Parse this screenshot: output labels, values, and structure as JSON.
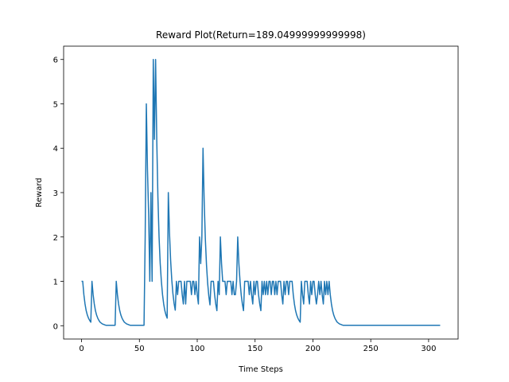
{
  "chart_data": {
    "type": "line",
    "title": "Reward Plot(Return=189.04999999999998)",
    "x_label": "Time Steps",
    "y_label": "Reward",
    "color": "#1f77b4",
    "xlim": [
      -15.5,
      325.5
    ],
    "ylim": [
      -0.3,
      6.3
    ],
    "xticks": [
      0,
      50,
      100,
      150,
      200,
      250,
      300
    ],
    "yticks": [
      0,
      1,
      2,
      3,
      4,
      5,
      6
    ],
    "x": [
      0,
      1,
      2,
      3,
      4,
      5,
      6,
      7,
      8,
      9,
      10,
      11,
      12,
      13,
      14,
      15,
      16,
      17,
      18,
      19,
      20,
      21,
      29,
      30,
      31,
      32,
      33,
      34,
      35,
      36,
      37,
      38,
      39,
      40,
      41,
      42,
      54,
      55,
      56,
      57,
      58,
      59,
      60,
      61,
      62,
      63,
      64,
      65,
      66,
      67,
      68,
      69,
      70,
      71,
      72,
      73,
      74,
      75,
      76,
      77,
      78,
      79,
      80,
      81,
      82,
      83,
      84,
      85,
      86,
      87,
      88,
      89,
      90,
      91,
      92,
      93,
      94,
      95,
      96,
      97,
      98,
      99,
      100,
      101,
      102,
      103,
      104,
      105,
      106,
      107,
      108,
      109,
      110,
      111,
      112,
      113,
      114,
      115,
      116,
      117,
      118,
      119,
      120,
      121,
      122,
      123,
      124,
      125,
      126,
      127,
      128,
      129,
      130,
      131,
      132,
      133,
      134,
      135,
      136,
      137,
      138,
      139,
      140,
      141,
      142,
      143,
      144,
      145,
      146,
      147,
      148,
      149,
      150,
      151,
      152,
      153,
      154,
      155,
      156,
      157,
      158,
      159,
      160,
      161,
      162,
      163,
      164,
      165,
      166,
      167,
      168,
      169,
      170,
      171,
      172,
      173,
      174,
      175,
      176,
      177,
      178,
      179,
      180,
      181,
      182,
      183,
      184,
      185,
      186,
      187,
      188,
      189,
      190,
      191,
      192,
      193,
      194,
      195,
      196,
      197,
      198,
      199,
      200,
      201,
      202,
      203,
      204,
      205,
      206,
      207,
      208,
      209,
      210,
      211,
      212,
      213,
      214,
      215,
      216,
      217,
      218,
      219,
      220,
      221,
      222,
      223,
      224,
      225,
      226,
      310
    ],
    "values": [
      1,
      1,
      0.7,
      0.49,
      0.34,
      0.24,
      0.17,
      0.12,
      0.08,
      1,
      0.7,
      0.49,
      0.34,
      0.24,
      0.17,
      0.12,
      0.08,
      0.06,
      0.04,
      0.03,
      0.02,
      0.01,
      0.01,
      1,
      0.7,
      0.49,
      0.34,
      0.24,
      0.17,
      0.12,
      0.08,
      0.06,
      0.04,
      0.03,
      0.02,
      0.01,
      0.01,
      2,
      5,
      3.5,
      2.5,
      1,
      3,
      1,
      6,
      4.2,
      6,
      4.2,
      2.9,
      2,
      1.4,
      1,
      0.7,
      0.49,
      0.34,
      0.24,
      0.17,
      3,
      2.1,
      1.47,
      1.03,
      0.72,
      0.5,
      0.35,
      1,
      0.7,
      1,
      1,
      1,
      0.7,
      0.49,
      1,
      0.49,
      1,
      1,
      1,
      1,
      0.7,
      1,
      1,
      0.7,
      1,
      0.7,
      0.49,
      2,
      1.4,
      2,
      4,
      2.8,
      1.96,
      1.37,
      0.96,
      0.67,
      0.47,
      1,
      1,
      1,
      0.7,
      0.49,
      0.34,
      1,
      0.7,
      2,
      1.4,
      1,
      1,
      1,
      0.7,
      1,
      1,
      1,
      1,
      0.7,
      1,
      0.7,
      0.7,
      1,
      2,
      1.4,
      1,
      0.7,
      0.49,
      0.34,
      1,
      1,
      1,
      1,
      0.7,
      1,
      0.7,
      0.49,
      1,
      0.7,
      1,
      1,
      0.7,
      0.49,
      0.34,
      1,
      0.7,
      1,
      0.7,
      1,
      0.7,
      1,
      1,
      0.7,
      1,
      1,
      0.7,
      1,
      0.7,
      1,
      1,
      1,
      0.7,
      0.49,
      1,
      0.7,
      1,
      1,
      0.7,
      1,
      1,
      1,
      0.7,
      0.49,
      0.34,
      0.24,
      0.17,
      0.12,
      0.08,
      1,
      0.7,
      0.49,
      1,
      1,
      1,
      0.7,
      0.49,
      1,
      0.7,
      1,
      1,
      0.7,
      0.49,
      0.7,
      1,
      0.7,
      1,
      0.7,
      0.49,
      1,
      0.7,
      1,
      0.7,
      1,
      0.7,
      0.49,
      0.34,
      0.24,
      0.17,
      0.12,
      0.08,
      0.06,
      0.04,
      0.03,
      0.02,
      0.01,
      0.01
    ]
  }
}
